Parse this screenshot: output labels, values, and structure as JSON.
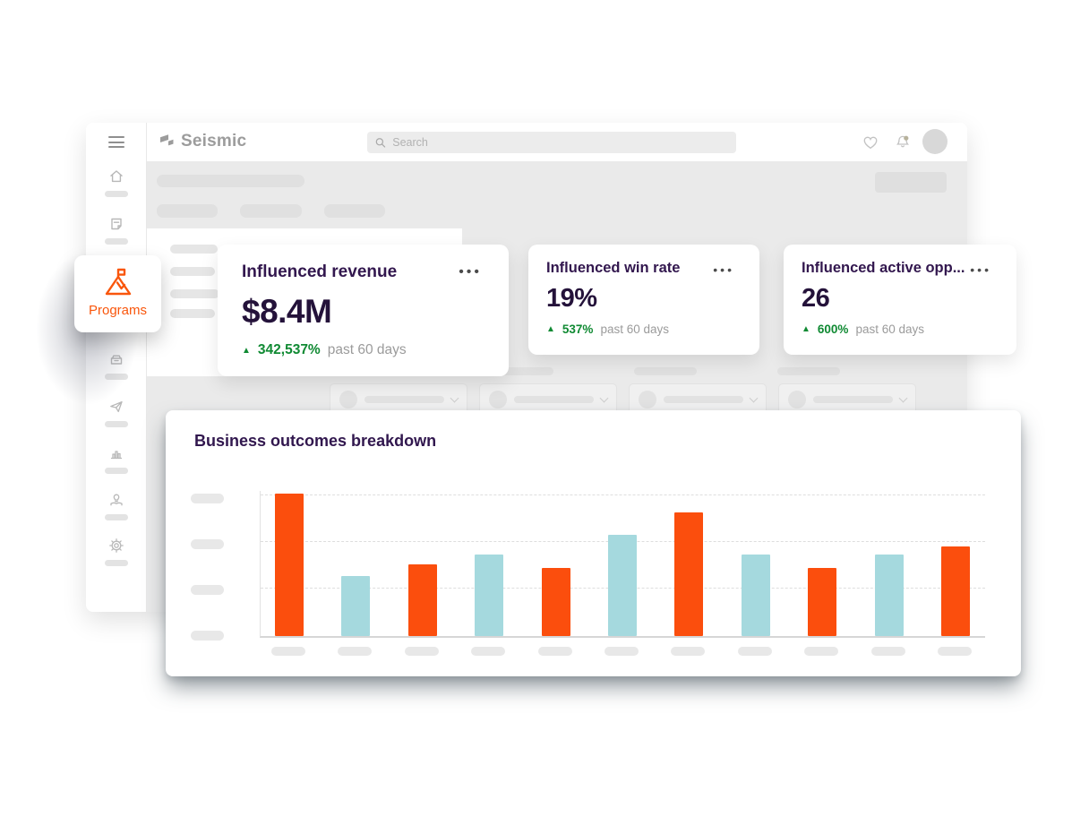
{
  "topbar": {
    "logo": "Seismic",
    "search_placeholder": "Search",
    "icons": [
      "menu-icon",
      "search-icon",
      "heart-icon",
      "bell-icon",
      "avatar"
    ]
  },
  "sidebar": {
    "icons": [
      "home-icon",
      "content-icon",
      "programs-icon",
      "library-icon",
      "send-icon",
      "analytics-icon",
      "learning-icon",
      "settings-icon"
    ]
  },
  "programs_flyout": {
    "icon": "mountain-flag-icon",
    "label": "Programs"
  },
  "kpi_cards": [
    {
      "title": "Influenced revenue",
      "menu": "•••",
      "value": "$8.4M",
      "delta_icon": "▲",
      "delta": "342,537%",
      "period": "past 60 days"
    },
    {
      "title": "Influenced win rate",
      "menu": "•••",
      "value": "19%",
      "delta_icon": "▲",
      "delta": "537%",
      "period": "past 60 days"
    },
    {
      "title": "Influenced active opp...",
      "menu": "•••",
      "value": "26",
      "delta_icon": "▲",
      "delta": "600%",
      "period": "past 60 days"
    }
  ],
  "chart_card": {
    "title": "Business outcomes breakdown"
  },
  "chart_data": {
    "type": "bar",
    "title": "Business outcomes breakdown",
    "note": "axis tick labels and category labels are redacted placeholder pills in the screenshot; values are percent of tallest bar",
    "value_scale": "percent_of_max",
    "ylim": [
      0,
      100
    ],
    "grid": "3 dashed horizontal gridlines plus solid baseline",
    "legend": "none",
    "category_count": 11,
    "bars": [
      {
        "value": 100,
        "series": "orange"
      },
      {
        "value": 42,
        "series": "teal"
      },
      {
        "value": 50,
        "series": "orange"
      },
      {
        "value": 57,
        "series": "teal"
      },
      {
        "value": 48,
        "series": "orange"
      },
      {
        "value": 71,
        "series": "teal"
      },
      {
        "value": 87,
        "series": "orange"
      },
      {
        "value": 57,
        "series": "teal"
      },
      {
        "value": 48,
        "series": "orange"
      },
      {
        "value": 57,
        "series": "teal"
      },
      {
        "value": 63,
        "series": "orange"
      }
    ],
    "series_colors": {
      "orange": "#FB4E0D",
      "teal": "#A5D9DE"
    }
  },
  "colors": {
    "accent_orange": "#F9560C",
    "bar_orange": "#FB4E0D",
    "bar_teal": "#A5D9DE",
    "positive_green": "#108A33",
    "heading_purple": "#32174E",
    "value_ink": "#24123A",
    "muted_text": "#9B9B9B",
    "chrome_gray": "#9C9C9C"
  }
}
